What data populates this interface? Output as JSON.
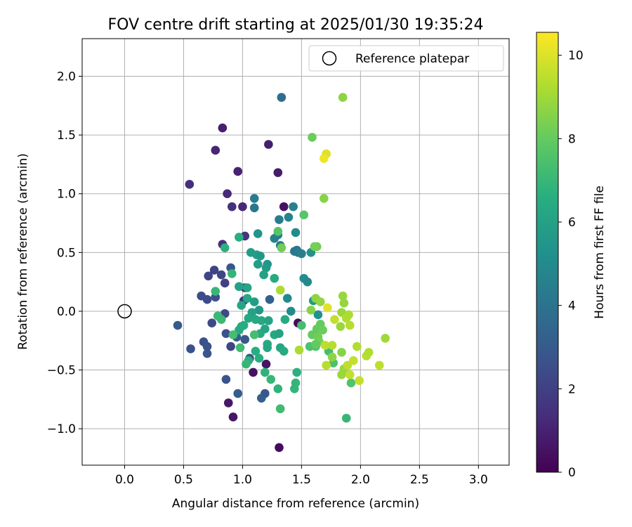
{
  "chart_data": {
    "type": "scatter",
    "title": "FOV centre drift starting at 2025/01/30 19:35:24",
    "xlabel": "Angular distance from reference (arcmin)",
    "ylabel": "Rotation from reference (arcmin)",
    "xlim": [
      -0.36,
      3.26
    ],
    "ylim": [
      -1.31,
      2.32
    ],
    "xticks": [
      "0.0",
      "0.5",
      "1.0",
      "1.5",
      "2.0",
      "2.5",
      "3.0"
    ],
    "yticks": [
      "−1.0",
      "−0.5",
      "0.0",
      "0.5",
      "1.0",
      "1.5",
      "2.0"
    ],
    "grid": true,
    "legend": {
      "position": "top-right",
      "entries": [
        {
          "label": "Reference platepar",
          "marker": "open-circle"
        }
      ]
    },
    "reference_point": {
      "x": 0.0,
      "y": 0.0
    },
    "colorbar": {
      "label": "Hours from first FF file",
      "range": [
        0,
        10.55
      ],
      "ticks": [
        "0",
        "2",
        "4",
        "6",
        "8",
        "10"
      ],
      "colormap": "viridis"
    },
    "points": [
      {
        "x": 1.47,
        "y": -0.1,
        "h": 0.3
      },
      {
        "x": 1.31,
        "y": -1.16,
        "h": 0.3
      },
      {
        "x": 1.2,
        "y": -0.45,
        "h": 0.6
      },
      {
        "x": 1.09,
        "y": -0.52,
        "h": 0.5
      },
      {
        "x": 1.35,
        "y": 0.89,
        "h": 0.5
      },
      {
        "x": 0.92,
        "y": -0.9,
        "h": 0.6
      },
      {
        "x": 0.88,
        "y": -0.78,
        "h": 0.7
      },
      {
        "x": 1.3,
        "y": 1.18,
        "h": 0.8
      },
      {
        "x": 1.22,
        "y": 1.42,
        "h": 0.9
      },
      {
        "x": 0.83,
        "y": 1.56,
        "h": 0.9
      },
      {
        "x": 0.77,
        "y": 1.37,
        "h": 1.1
      },
      {
        "x": 0.96,
        "y": 1.19,
        "h": 1.0
      },
      {
        "x": 0.55,
        "y": 1.08,
        "h": 1.4
      },
      {
        "x": 0.87,
        "y": 1.0,
        "h": 1.2
      },
      {
        "x": 0.91,
        "y": 0.89,
        "h": 1.5
      },
      {
        "x": 1.0,
        "y": 0.89,
        "h": 1.2
      },
      {
        "x": 1.02,
        "y": 0.64,
        "h": 1.6
      },
      {
        "x": 0.83,
        "y": 0.57,
        "h": 1.5
      },
      {
        "x": 1.02,
        "y": 0.2,
        "h": 1.7
      },
      {
        "x": 1.01,
        "y": 0.09,
        "h": 1.8
      },
      {
        "x": 0.85,
        "y": 0.24,
        "h": 2.0
      },
      {
        "x": 0.82,
        "y": 0.31,
        "h": 2.2
      },
      {
        "x": 0.76,
        "y": 0.35,
        "h": 2.1
      },
      {
        "x": 0.71,
        "y": 0.3,
        "h": 2.2
      },
      {
        "x": 0.77,
        "y": 0.12,
        "h": 2.6
      },
      {
        "x": 0.65,
        "y": 0.13,
        "h": 2.5
      },
      {
        "x": 0.7,
        "y": 0.1,
        "h": 2.4
      },
      {
        "x": 0.74,
        "y": -0.1,
        "h": 2.3
      },
      {
        "x": 0.85,
        "y": -0.02,
        "h": 2.3
      },
      {
        "x": 0.86,
        "y": -0.19,
        "h": 2.6
      },
      {
        "x": 0.9,
        "y": -0.3,
        "h": 2.2
      },
      {
        "x": 0.67,
        "y": -0.26,
        "h": 2.6
      },
      {
        "x": 0.7,
        "y": -0.3,
        "h": 2.7
      },
      {
        "x": 0.7,
        "y": -0.36,
        "h": 2.8
      },
      {
        "x": 0.56,
        "y": -0.32,
        "h": 2.6
      },
      {
        "x": 0.45,
        "y": -0.12,
        "h": 3.0
      },
      {
        "x": 0.86,
        "y": -0.58,
        "h": 2.7
      },
      {
        "x": 0.96,
        "y": -0.7,
        "h": 3.1
      },
      {
        "x": 1.06,
        "y": -0.4,
        "h": 2.8
      },
      {
        "x": 1.16,
        "y": -0.74,
        "h": 3.2
      },
      {
        "x": 1.19,
        "y": -0.7,
        "h": 2.9
      },
      {
        "x": 1.02,
        "y": -0.24,
        "h": 2.9
      },
      {
        "x": 0.95,
        "y": -0.22,
        "h": 3.2
      },
      {
        "x": 0.9,
        "y": 0.37,
        "h": 2.9
      },
      {
        "x": 1.23,
        "y": 0.1,
        "h": 3.2
      },
      {
        "x": 1.33,
        "y": 1.82,
        "h": 3.8
      },
      {
        "x": 1.1,
        "y": 0.96,
        "h": 4.4
      },
      {
        "x": 1.1,
        "y": 0.88,
        "h": 4.1
      },
      {
        "x": 1.43,
        "y": 0.89,
        "h": 4.6
      },
      {
        "x": 1.31,
        "y": 0.78,
        "h": 4.4
      },
      {
        "x": 1.39,
        "y": 0.8,
        "h": 4.7
      },
      {
        "x": 1.3,
        "y": 0.65,
        "h": 4.4
      },
      {
        "x": 1.27,
        "y": 0.62,
        "h": 4.6
      },
      {
        "x": 1.32,
        "y": 0.56,
        "h": 4.4
      },
      {
        "x": 1.44,
        "y": 0.51,
        "h": 4.1
      },
      {
        "x": 1.46,
        "y": 0.52,
        "h": 4.0
      },
      {
        "x": 1.47,
        "y": 0.5,
        "h": 4.4
      },
      {
        "x": 1.5,
        "y": 0.49,
        "h": 4.5
      },
      {
        "x": 1.52,
        "y": 0.28,
        "h": 5.1
      },
      {
        "x": 1.55,
        "y": 0.25,
        "h": 4.9
      },
      {
        "x": 1.38,
        "y": 0.11,
        "h": 5.0
      },
      {
        "x": 1.41,
        "y": 0.0,
        "h": 5.0
      },
      {
        "x": 1.6,
        "y": 0.09,
        "h": 5.6
      },
      {
        "x": 1.64,
        "y": -0.03,
        "h": 5.3
      },
      {
        "x": 1.45,
        "y": 0.67,
        "h": 5.0
      },
      {
        "x": 1.58,
        "y": 0.5,
        "h": 5.3
      },
      {
        "x": 1.13,
        "y": 0.66,
        "h": 5.4
      },
      {
        "x": 1.07,
        "y": 0.5,
        "h": 5.8
      },
      {
        "x": 1.12,
        "y": 0.48,
        "h": 5.8
      },
      {
        "x": 1.15,
        "y": 0.47,
        "h": 5.6
      },
      {
        "x": 1.21,
        "y": 0.4,
        "h": 5.5
      },
      {
        "x": 1.2,
        "y": 0.37,
        "h": 5.7
      },
      {
        "x": 1.13,
        "y": 0.4,
        "h": 5.8
      },
      {
        "x": 1.18,
        "y": 0.31,
        "h": 6.0
      },
      {
        "x": 1.04,
        "y": 0.2,
        "h": 6.2
      },
      {
        "x": 0.97,
        "y": 0.21,
        "h": 6.0
      },
      {
        "x": 0.99,
        "y": 0.05,
        "h": 6.2
      },
      {
        "x": 1.04,
        "y": 0.11,
        "h": 6.3
      },
      {
        "x": 1.1,
        "y": 0.08,
        "h": 5.8
      },
      {
        "x": 1.14,
        "y": 0.01,
        "h": 5.6
      },
      {
        "x": 1.08,
        "y": -0.01,
        "h": 6.0
      },
      {
        "x": 1.05,
        "y": -0.06,
        "h": 6.3
      },
      {
        "x": 0.99,
        "y": -0.13,
        "h": 6.4
      },
      {
        "x": 0.97,
        "y": -0.16,
        "h": 6.4
      },
      {
        "x": 1.01,
        "y": -0.12,
        "h": 6.5
      },
      {
        "x": 1.11,
        "y": -0.07,
        "h": 6.3
      },
      {
        "x": 1.16,
        "y": -0.08,
        "h": 6.3
      },
      {
        "x": 1.22,
        "y": -0.08,
        "h": 6.1
      },
      {
        "x": 1.19,
        "y": -0.15,
        "h": 6.2
      },
      {
        "x": 1.15,
        "y": -0.19,
        "h": 6.4
      },
      {
        "x": 1.27,
        "y": -0.2,
        "h": 6.3
      },
      {
        "x": 1.31,
        "y": -0.19,
        "h": 6.1
      },
      {
        "x": 1.21,
        "y": -0.28,
        "h": 6.4
      },
      {
        "x": 1.21,
        "y": -0.31,
        "h": 6.2
      },
      {
        "x": 1.32,
        "y": -0.31,
        "h": 6.2
      },
      {
        "x": 1.35,
        "y": -0.34,
        "h": 6.4
      },
      {
        "x": 1.11,
        "y": -0.34,
        "h": 6.6
      },
      {
        "x": 1.14,
        "y": -0.4,
        "h": 6.6
      },
      {
        "x": 1.05,
        "y": -0.42,
        "h": 6.7
      },
      {
        "x": 1.03,
        "y": -0.45,
        "h": 7.0
      },
      {
        "x": 1.19,
        "y": -0.52,
        "h": 6.8
      },
      {
        "x": 1.24,
        "y": -0.58,
        "h": 7.0
      },
      {
        "x": 1.3,
        "y": -0.66,
        "h": 6.8
      },
      {
        "x": 1.46,
        "y": -0.52,
        "h": 6.7
      },
      {
        "x": 1.45,
        "y": -0.61,
        "h": 6.9
      },
      {
        "x": 1.44,
        "y": -0.66,
        "h": 6.9
      },
      {
        "x": 1.32,
        "y": -0.83,
        "h": 7.2
      },
      {
        "x": 1.88,
        "y": -0.91,
        "h": 7.0
      },
      {
        "x": 1.27,
        "y": 0.28,
        "h": 6.4
      },
      {
        "x": 1.36,
        "y": -0.07,
        "h": 6.4
      },
      {
        "x": 0.97,
        "y": 0.63,
        "h": 6.6
      },
      {
        "x": 0.85,
        "y": 0.54,
        "h": 6.7
      },
      {
        "x": 0.91,
        "y": 0.32,
        "h": 6.9
      },
      {
        "x": 0.77,
        "y": 0.17,
        "h": 7.0
      },
      {
        "x": 0.79,
        "y": -0.04,
        "h": 7.1
      },
      {
        "x": 0.82,
        "y": -0.07,
        "h": 7.1
      },
      {
        "x": 0.92,
        "y": -0.2,
        "h": 7.3
      },
      {
        "x": 0.98,
        "y": -0.31,
        "h": 7.2
      },
      {
        "x": 1.1,
        "y": -0.2,
        "h": 7.3
      },
      {
        "x": 1.5,
        "y": -0.12,
        "h": 7.3
      },
      {
        "x": 1.57,
        "y": -0.3,
        "h": 7.5
      },
      {
        "x": 1.62,
        "y": -0.3,
        "h": 7.6
      },
      {
        "x": 1.3,
        "y": 0.68,
        "h": 7.7
      },
      {
        "x": 1.52,
        "y": 0.82,
        "h": 7.7
      },
      {
        "x": 1.59,
        "y": 1.48,
        "h": 8.1
      },
      {
        "x": 1.63,
        "y": 0.55,
        "h": 8.2
      },
      {
        "x": 1.61,
        "y": 0.55,
        "h": 8.3
      },
      {
        "x": 1.33,
        "y": 0.54,
        "h": 8.2
      },
      {
        "x": 1.58,
        "y": 0.01,
        "h": 8.6
      },
      {
        "x": 1.62,
        "y": 0.11,
        "h": 8.7
      },
      {
        "x": 1.66,
        "y": 0.08,
        "h": 8.8
      },
      {
        "x": 1.59,
        "y": -0.2,
        "h": 8.0
      },
      {
        "x": 1.63,
        "y": -0.15,
        "h": 8.0
      },
      {
        "x": 1.66,
        "y": -0.11,
        "h": 8.0
      },
      {
        "x": 1.68,
        "y": -0.16,
        "h": 8.1
      },
      {
        "x": 1.64,
        "y": -0.22,
        "h": 8.2
      },
      {
        "x": 1.65,
        "y": -0.26,
        "h": 8.3
      },
      {
        "x": 1.62,
        "y": -0.28,
        "h": 8.0
      },
      {
        "x": 1.69,
        "y": 0.96,
        "h": 8.6
      },
      {
        "x": 1.85,
        "y": 1.82,
        "h": 8.7
      },
      {
        "x": 1.85,
        "y": 0.13,
        "h": 8.9
      },
      {
        "x": 1.84,
        "y": -0.01,
        "h": 8.9
      },
      {
        "x": 1.86,
        "y": 0.07,
        "h": 8.8
      },
      {
        "x": 1.83,
        "y": -0.13,
        "h": 8.9
      },
      {
        "x": 1.84,
        "y": -0.35,
        "h": 8.6
      },
      {
        "x": 1.86,
        "y": -0.49,
        "h": 8.9
      },
      {
        "x": 1.84,
        "y": -0.54,
        "h": 8.9
      },
      {
        "x": 1.92,
        "y": -0.61,
        "h": 7.6
      },
      {
        "x": 1.77,
        "y": -0.44,
        "h": 7.5
      },
      {
        "x": 1.73,
        "y": -0.34,
        "h": 7.3
      },
      {
        "x": 1.76,
        "y": -0.39,
        "h": 8.7
      },
      {
        "x": 1.48,
        "y": -0.33,
        "h": 9.2
      },
      {
        "x": 1.32,
        "y": 0.18,
        "h": 9.2
      },
      {
        "x": 1.7,
        "y": -0.29,
        "h": 9.5
      },
      {
        "x": 1.76,
        "y": -0.29,
        "h": 9.4
      },
      {
        "x": 1.71,
        "y": -0.46,
        "h": 9.4
      },
      {
        "x": 1.78,
        "y": -0.07,
        "h": 9.6
      },
      {
        "x": 1.88,
        "y": -0.06,
        "h": 9.3
      },
      {
        "x": 1.9,
        "y": -0.03,
        "h": 9.2
      },
      {
        "x": 1.91,
        "y": -0.12,
        "h": 9.4
      },
      {
        "x": 1.89,
        "y": -0.46,
        "h": 9.5
      },
      {
        "x": 1.91,
        "y": -0.54,
        "h": 9.6
      },
      {
        "x": 1.94,
        "y": -0.42,
        "h": 9.6
      },
      {
        "x": 1.97,
        "y": -0.3,
        "h": 9.3
      },
      {
        "x": 1.99,
        "y": -0.59,
        "h": 9.6
      },
      {
        "x": 2.05,
        "y": -0.38,
        "h": 9.4
      },
      {
        "x": 2.07,
        "y": -0.35,
        "h": 9.3
      },
      {
        "x": 2.16,
        "y": -0.46,
        "h": 9.5
      },
      {
        "x": 2.21,
        "y": -0.23,
        "h": 9.0
      },
      {
        "x": 1.72,
        "y": 0.03,
        "h": 10.1
      },
      {
        "x": 1.71,
        "y": 1.34,
        "h": 10.0
      },
      {
        "x": 1.69,
        "y": 1.3,
        "h": 10.3
      }
    ]
  }
}
